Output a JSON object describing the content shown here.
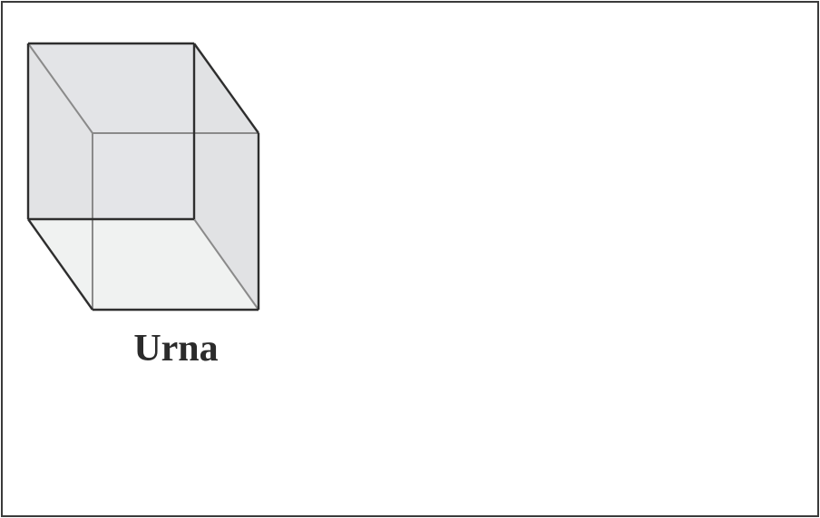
{
  "diagram": {
    "label": "Urna",
    "colors": {
      "frame": "#3a3a3a",
      "edge_front": "#2e2e2e",
      "edge_hidden": "#8a8a8a",
      "face_back": "#e4e5e8",
      "face_side": "#e2e3e5",
      "face_floor": "#f0f2f1",
      "text": "#2b2b2b"
    }
  }
}
